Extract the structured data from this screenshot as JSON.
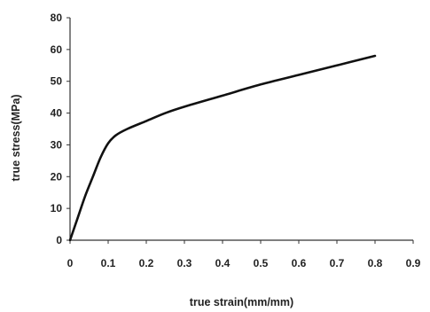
{
  "chart_data": {
    "type": "line",
    "xlabel": "true strain(mm/mm)",
    "ylabel": "true stress(MPa)",
    "xlim": [
      0,
      0.9
    ],
    "ylim": [
      0,
      80
    ],
    "xticks": [
      0,
      0.1,
      0.2,
      0.3,
      0.4,
      0.5,
      0.6,
      0.7,
      0.8,
      0.9
    ],
    "xtick_labels": [
      "0",
      "0.1",
      "0.2",
      "0.3",
      "0.4",
      "0.5",
      "0.6",
      "0.7",
      "0.8",
      "0.9"
    ],
    "yticks": [
      0,
      10,
      20,
      30,
      40,
      50,
      60,
      80
    ],
    "ytick_labels": [
      "0",
      "10",
      "20",
      "30",
      "40",
      "50",
      "60",
      "80"
    ],
    "grid": false,
    "legend": "none",
    "series": [
      {
        "color": "#111111",
        "x": [
          0,
          0.02,
          0.04,
          0.06,
          0.08,
          0.1,
          0.12,
          0.15,
          0.2,
          0.25,
          0.3,
          0.4,
          0.5,
          0.6,
          0.7,
          0.8
        ],
        "y": [
          0,
          7,
          14,
          20,
          26,
          30.5,
          33,
          35,
          37.5,
          40,
          42,
          45.5,
          49,
          52,
          55,
          58
        ]
      }
    ]
  }
}
